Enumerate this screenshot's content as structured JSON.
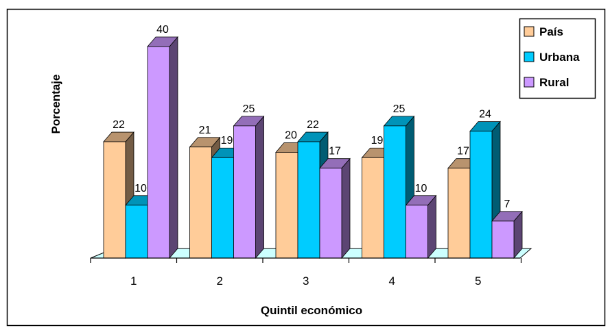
{
  "chart_data": {
    "type": "bar",
    "title": "",
    "xlabel": "Quintil económico",
    "ylabel": "Porcentaje",
    "categories": [
      "1",
      "2",
      "3",
      "4",
      "5"
    ],
    "series": [
      {
        "name": "País",
        "values": [
          22,
          21,
          20,
          19,
          17
        ],
        "color": "#FFCC99"
      },
      {
        "name": "Urbana",
        "values": [
          10,
          19,
          22,
          25,
          24
        ],
        "color": "#00CCFF"
      },
      {
        "name": "Rural",
        "values": [
          40,
          25,
          17,
          10,
          7
        ],
        "color": "#CC99FF"
      }
    ],
    "ylim": [
      0,
      40
    ],
    "grid": false,
    "legend": "top-right",
    "floor_color": "#CCFFFF",
    "style": "3d-clustered-column"
  }
}
